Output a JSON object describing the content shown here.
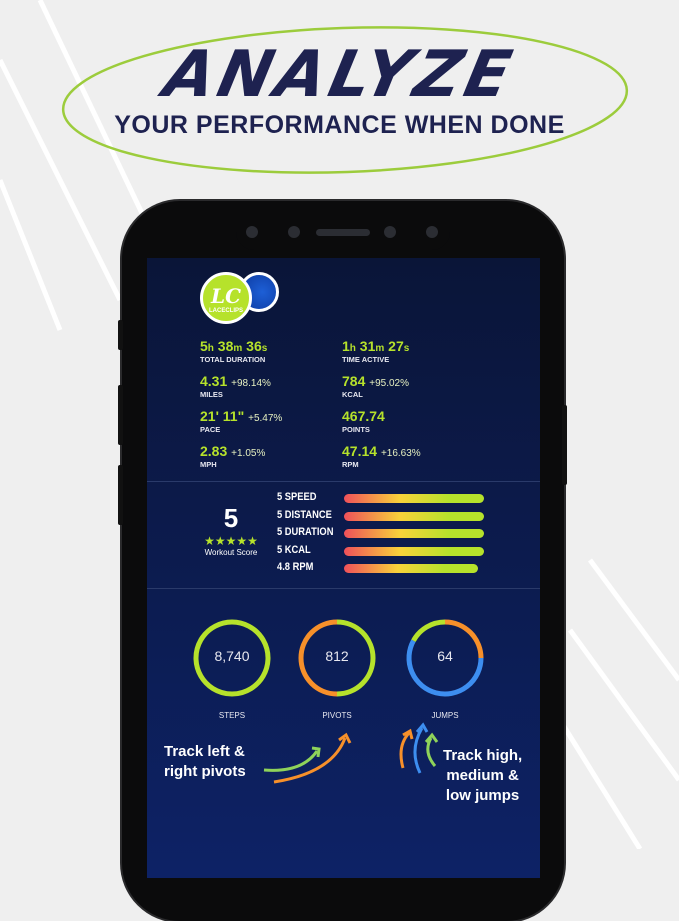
{
  "header": {
    "title": "ANALYZE",
    "subtitle": "YOUR PERFORMANCE WHEN DONE"
  },
  "brand": {
    "logo_initials": "LC",
    "logo_name": "LACECLIPS"
  },
  "colors": {
    "accent_green": "#b6e22b",
    "orange": "#f7902a",
    "blue": "#3d8ef0",
    "navy": "#1e2250"
  },
  "stats": [
    {
      "value": [
        [
          "5",
          "h"
        ],
        [
          "38",
          "m"
        ],
        [
          "36",
          "s"
        ]
      ],
      "label": "TOTAL DURATION"
    },
    {
      "value": [
        [
          "1",
          "h"
        ],
        [
          "31",
          "m"
        ],
        [
          "27",
          "s"
        ]
      ],
      "label": "TIME ACTIVE"
    },
    {
      "main": "4.31",
      "change": "+98.14%",
      "label": "MILES"
    },
    {
      "main": "784",
      "change": "+95.02%",
      "label": "KCAL"
    },
    {
      "main": "21' 11\"",
      "change": "+5.47%",
      "label": "PACE"
    },
    {
      "main": "467.74",
      "change": "",
      "label": "POINTS"
    },
    {
      "main": "2.83",
      "change": "+1.05%",
      "label": "MPH"
    },
    {
      "main": "47.14",
      "change": "+16.63%",
      "label": "RPM"
    }
  ],
  "workout_score": {
    "value": "5",
    "stars": 5,
    "stars_text": "★★★★★",
    "label": "Workout Score"
  },
  "categories": [
    {
      "label": "5 SPEED",
      "score": 5
    },
    {
      "label": "5 DISTANCE",
      "score": 5
    },
    {
      "label": "5 DURATION",
      "score": 5
    },
    {
      "label": "5 KCAL",
      "score": 5
    },
    {
      "label": "4.8 RPM",
      "score": 4.8
    }
  ],
  "rings": [
    {
      "value": "8,740",
      "label": "STEPS",
      "segments": [
        {
          "color": "#b6e22b",
          "fraction": 1
        }
      ]
    },
    {
      "value": "812",
      "label": "PIVOTS",
      "segments": [
        {
          "color": "#b6e22b",
          "fraction": 0.5
        },
        {
          "color": "#f7902a",
          "fraction": 0.5
        }
      ]
    },
    {
      "value": "64",
      "label": "JUMPS",
      "segments": [
        {
          "color": "#f7902a",
          "fraction": 0.25
        },
        {
          "color": "#3d8ef0",
          "fraction": 0.58
        },
        {
          "color": "#b6e22b",
          "fraction": 0.17
        }
      ]
    }
  ],
  "notes": {
    "pivots": [
      "Track left &",
      "right pivots"
    ],
    "jumps": [
      "Track high,",
      "medium &",
      "low jumps"
    ]
  }
}
